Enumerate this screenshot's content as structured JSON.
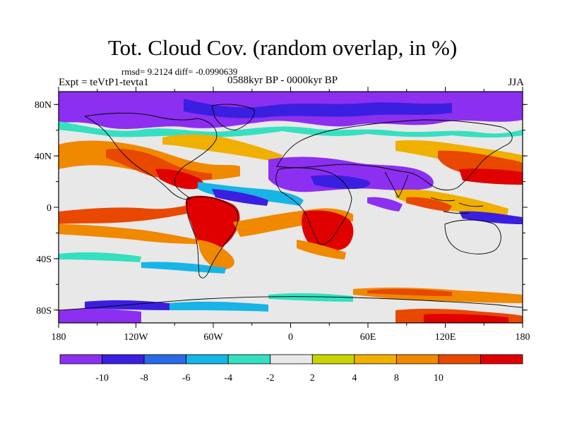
{
  "title": "Tot. Cloud Cov. (random overlap, in %)",
  "stats": "rmsd= 9.2124 diff= -0.0990639",
  "period": "0588kyr BP - 0000kyr BP",
  "experiment": "Expt = teVtP1-tevta1",
  "season": "JJA",
  "map": {
    "projection": "cylindrical equidistant",
    "lon_range": [
      -180,
      180
    ],
    "lat_range": [
      -90,
      90
    ],
    "x_tick_labels": [
      "180",
      "120W",
      "60W",
      "0",
      "60E",
      "120E",
      "180"
    ],
    "y_tick_labels": [
      "80N",
      "40N",
      "0",
      "40S",
      "80S"
    ],
    "y_tick_values": [
      80,
      40,
      0,
      -40,
      -80
    ]
  },
  "colorbar": {
    "labels": [
      "-10",
      "-8",
      "-6",
      "-4",
      "-2",
      "2",
      "4",
      "8",
      "10"
    ],
    "colors": [
      "#8c2ff0",
      "#3a1fe0",
      "#2a6ae6",
      "#17b4e6",
      "#35e0c0",
      "#e8e8e8",
      "#c8d400",
      "#f0b000",
      "#f08800",
      "#e84800",
      "#e00000"
    ]
  }
}
